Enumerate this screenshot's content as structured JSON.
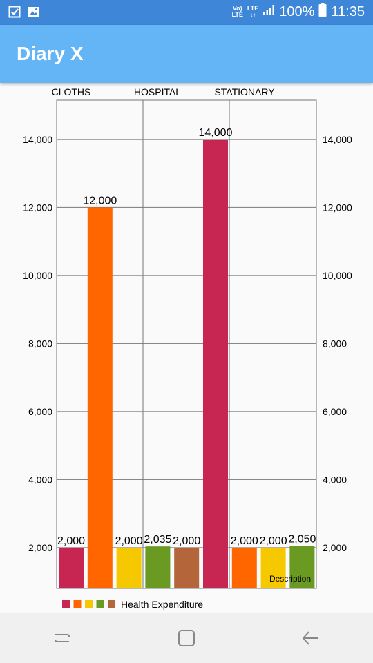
{
  "status_bar": {
    "network_top": "Vo)",
    "network_bottom": "LTE",
    "lte_label": "LTE",
    "battery": "100%",
    "time": "11:35",
    "icons": [
      "checkbox-icon",
      "image-icon",
      "volte-icon",
      "signal-icon",
      "battery-icon"
    ]
  },
  "app_bar": {
    "title": "Diary X",
    "color": "#64b5f6"
  },
  "chart_data": {
    "type": "bar",
    "top_labels": [
      "CLOTHS",
      "HOSPITAL",
      "STATIONARY"
    ],
    "values": [
      2000,
      12000,
      2000,
      2035,
      2000,
      14000,
      2000,
      2000,
      2050
    ],
    "value_labels": [
      "2,000",
      "12,000",
      "2,000",
      "2,035",
      "2,000",
      "14,000",
      "2,000",
      "2,000",
      "2,050"
    ],
    "colors": [
      "#c62651",
      "#ff6600",
      "#f6c800",
      "#6a9a22",
      "#b5653a",
      "#c62651",
      "#ff6600",
      "#f6c800",
      "#6a9a22"
    ],
    "y_ticks": [
      "2,000",
      "4,000",
      "6,000",
      "8,000",
      "10,000",
      "12,000",
      "14,000"
    ],
    "y_tick_values": [
      2000,
      4000,
      6000,
      8000,
      10000,
      12000,
      14000
    ],
    "ylim": [
      800,
      15000
    ],
    "legend_colors": [
      "#c62651",
      "#ff6600",
      "#f6c800",
      "#6a9a22",
      "#b5653a"
    ],
    "legend_label": "Health Expenditure",
    "description": "Description",
    "grid": true,
    "legend_position": "bottom-left"
  },
  "nav_bar": {
    "buttons": [
      "recent-apps",
      "home",
      "back"
    ]
  }
}
